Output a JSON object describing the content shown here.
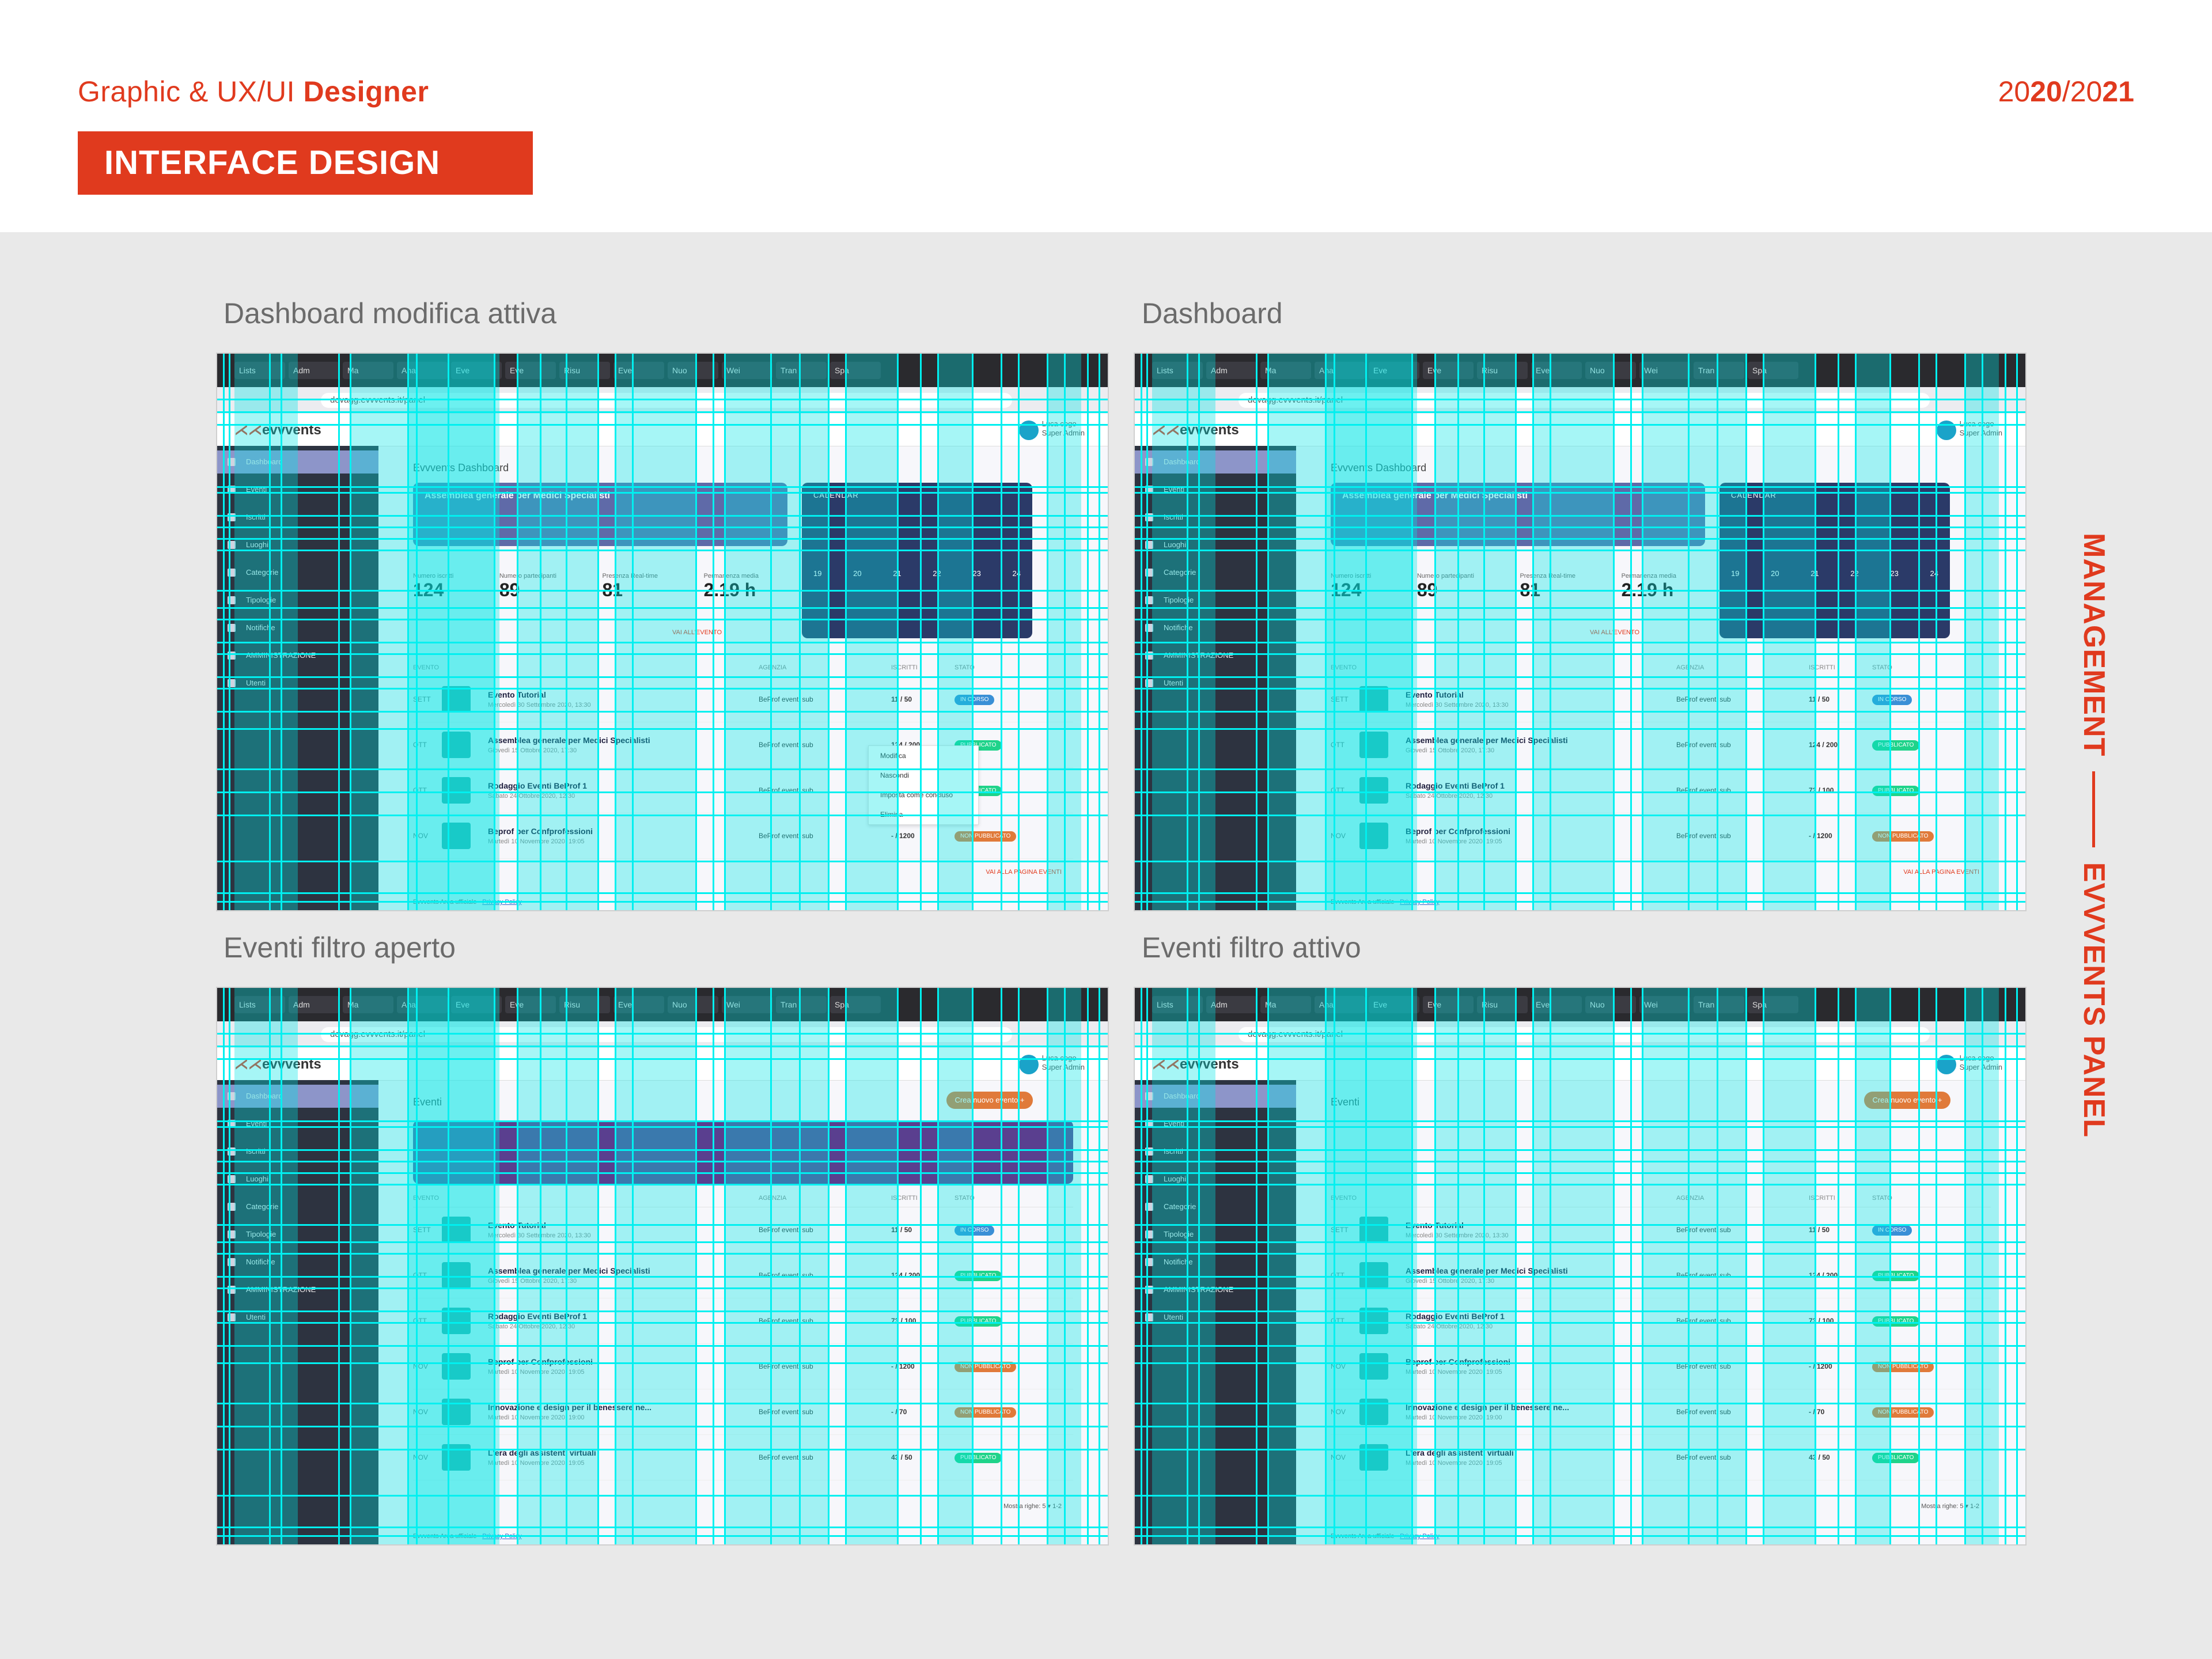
{
  "header": {
    "subtitle_prefix": "Graphic & UX/UI ",
    "subtitle_bold": "Designer",
    "year_parts": [
      "20",
      "20",
      "/",
      "20",
      "21"
    ],
    "badge": "INTERFACE DESIGN",
    "side_title_left": "MANAGEMENT",
    "side_title_right": "EVVVENTS PANEL"
  },
  "colors": {
    "accent": "#e03a1e",
    "overlay_cyan": "#00f0f0",
    "sidebar": "#2d3340",
    "card_purple": "#5f6aa8",
    "calendar_navy": "#2b3a68"
  },
  "panels": [
    {
      "label": "Dashboard modifica attiva"
    },
    {
      "label": "Dashboard"
    },
    {
      "label": "Eventi filtro aperto"
    },
    {
      "label": "Eventi filtro attivo"
    }
  ],
  "browser": {
    "tabs": [
      "Lists",
      "Adm",
      "Ma",
      "Ana",
      "Eve",
      "Eve",
      "Risu",
      "Eve",
      "Nuo",
      "Wei",
      "Tran",
      "Spa"
    ],
    "url": "devagg.evvvents.it/panel"
  },
  "app": {
    "logo_mark": "⋌⋌",
    "logo_text": "evvvents",
    "user_name": "Luca cogo",
    "user_role": "Super Admin",
    "sidebar": [
      "Dashboard",
      "Eventi",
      "Iscritti",
      "Luoghi",
      "Categorie",
      "Tipologie",
      "Notifiche",
      "AMMINISTRAZIONE",
      "Utenti"
    ],
    "dashboard_title": "Evvvents Dashboard",
    "events_title": "Eventi",
    "new_event_button": "Crea nuovo evento  +",
    "featured_date": "OTT",
    "featured_title": "Assemblea generale per Medici Specialisti",
    "calendar_title": "CALENDAR",
    "calendar_days": [
      "19",
      "20",
      "21",
      "22",
      "23",
      "24"
    ],
    "stats": [
      {
        "label": "Numero iscritti",
        "value": "124"
      },
      {
        "label": "Numero partecipanti",
        "value": "89"
      },
      {
        "label": "Presenza Real-time",
        "value": "81"
      },
      {
        "label": "Permanenza media",
        "value": "2.19 h"
      }
    ],
    "next_events_link": "VAI ALL'EVENTO",
    "table_headers": [
      "EVENTO",
      "AGENZIA",
      "ISCRITTI",
      "STATO"
    ],
    "dashboard_rows": [
      {
        "date": "SETT",
        "title": "Evento Tutorial",
        "desc": "Mercoledì 30 Settembre 2020, 13:30",
        "agency": "BeProf eventi sub",
        "count": "11 / 50",
        "status": "IN CORSO",
        "status_color": "#3a8fd6"
      },
      {
        "date": "OTT",
        "title": "Assemblea generale per Medici Specialisti",
        "desc": "Giovedì 15 Ottobre 2020, 17:30",
        "agency": "BeProf eventi sub",
        "count": "124 / 200",
        "status": "PUBBLICATO",
        "status_color": "#1fd38a"
      },
      {
        "date": "OTT",
        "title": "Rodaggio Eventi BeProf 1",
        "desc": "Sabato 24 Ottobre 2020, 12:30",
        "agency": "BeProf eventi sub",
        "count": "73 / 100",
        "status": "PUBBLICATO",
        "status_color": "#1fd38a"
      },
      {
        "date": "NOV",
        "title": "Beprof per Confprofessioni",
        "desc": "Martedì 10 Novembre 2020, 19:05",
        "agency": "BeProf eventi sub",
        "count": "- / 1200",
        "status": "NON PUBBLICATO",
        "status_color": "#e07a3a"
      }
    ],
    "events_extra_rows": [
      {
        "date": "NOV",
        "title": "Innovazione e design per il benessere ne...",
        "desc": "Martedì 10 Novembre 2020, 19:00",
        "agency": "BeProf eventi sub",
        "count": "- / 70",
        "status": "NON PUBBLICATO",
        "status_color": "#e07a3a"
      },
      {
        "date": "NOV",
        "title": "L'era degli assistenti virtuali",
        "desc": "Martedì 10 Novembre 2020, 19:05",
        "agency": "BeProf eventi sub",
        "count": "43 / 50",
        "status": "PUBBLICATO",
        "status_color": "#1fd38a"
      }
    ],
    "context_menu": [
      "Modifica",
      "Nascondi",
      "Imposta come concluso",
      "Elimina"
    ],
    "more_events_link": "VAI ALLA PAGINA EVENTI",
    "footer_prefix": "Evvvents Area ufficiale · ",
    "footer_link": "Privacy Policy",
    "pagination": "Mostra righe:  5 ▾    1-2"
  }
}
